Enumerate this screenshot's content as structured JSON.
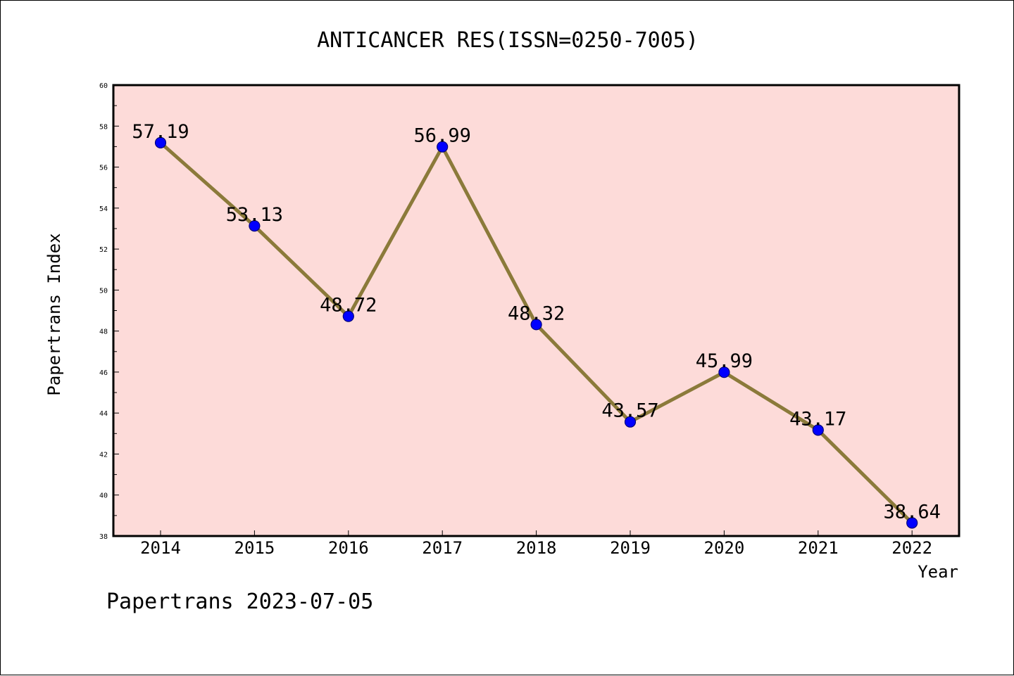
{
  "chart_data": {
    "type": "line",
    "title": "ANTICANCER RES(ISSN=0250-7005)",
    "xlabel": "Year",
    "ylabel": "Papertrans Index",
    "categories": [
      "2014",
      "2015",
      "2016",
      "2017",
      "2018",
      "2019",
      "2020",
      "2021",
      "2022"
    ],
    "series": [
      {
        "values": [
          57.19,
          53.13,
          48.72,
          56.99,
          48.32,
          43.57,
          45.99,
          43.17,
          38.64
        ],
        "data_labels": [
          "57.19",
          "53.13",
          "48.72",
          "56.99",
          "48.32",
          "43.57",
          "45.99",
          "43.17",
          "38.64"
        ]
      }
    ],
    "ylim": [
      38,
      60
    ],
    "yticks": [
      "38",
      "40",
      "42",
      "44",
      "46",
      "48",
      "50",
      "52",
      "54",
      "56",
      "58",
      "60"
    ],
    "grid": false,
    "legend": "none",
    "colors": {
      "plot_background": "#fddbd9",
      "line": "#8b7a3a",
      "marker": "#0000ff",
      "marker_edge": "#00007a"
    }
  },
  "footer": {
    "text": "Papertrans 2023-07-05"
  }
}
